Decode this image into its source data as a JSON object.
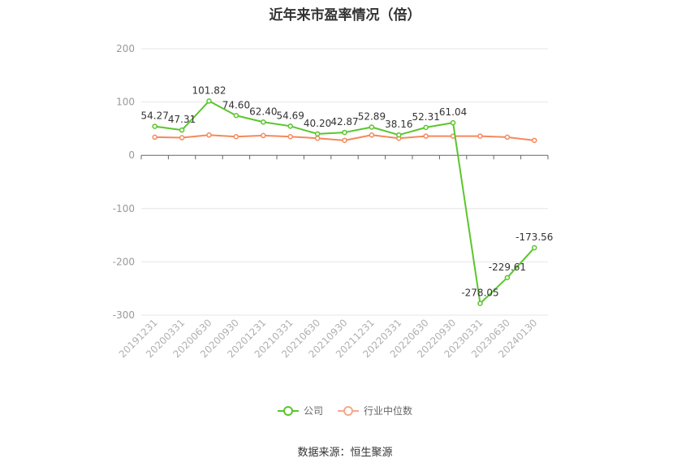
{
  "chart_data": {
    "type": "line",
    "title": "近年来市盈率情况（倍）",
    "categories": [
      "20191231",
      "20200331",
      "20200630",
      "20200930",
      "20201231",
      "20210331",
      "20210630",
      "20210930",
      "20211231",
      "20220331",
      "20220630",
      "20220930",
      "20230331",
      "20230630",
      "20240130"
    ],
    "series": [
      {
        "name": "公司",
        "color": "#5ac62d",
        "values": [
          54.27,
          47.31,
          101.82,
          74.6,
          62.4,
          54.69,
          40.2,
          42.87,
          52.89,
          38.16,
          52.31,
          61.04,
          -278.05,
          -229.61,
          -173.56
        ],
        "labels": [
          "54.27",
          "47.31",
          "101.82",
          "74.60",
          "62.40",
          "54.69",
          "40.20",
          "42.87",
          "52.89",
          "38.16",
          "52.31",
          "61.04",
          "-278.05",
          "-229.61",
          "-173.56"
        ]
      },
      {
        "name": "行业中位数",
        "color": "#f5895b",
        "values": [
          34,
          33,
          38,
          35,
          37,
          35,
          32,
          28,
          38,
          32,
          36,
          36,
          36,
          34,
          28
        ]
      }
    ],
    "yticks": [
      200,
      100,
      0,
      -100,
      -200,
      -300
    ],
    "ylim": [
      -300,
      200
    ],
    "grid": true,
    "legend_position": "bottom"
  },
  "source_text": "数据来源：恒生聚源"
}
